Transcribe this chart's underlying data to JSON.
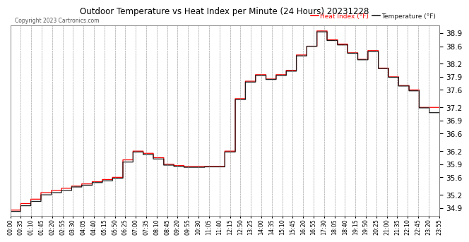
{
  "title": "Outdoor Temperature vs Heat Index per Minute (24 Hours) 20231228",
  "copyright": "Copyright 2023 Cartronics.com",
  "legend_heat": "Heat Index (°F)",
  "legend_temp": "Temperature (°F)",
  "ylabel_right_ticks": [
    34.9,
    35.2,
    35.6,
    35.9,
    36.2,
    36.6,
    36.9,
    37.2,
    37.6,
    37.9,
    38.2,
    38.6,
    38.9
  ],
  "ylim": [
    34.72,
    39.08
  ],
  "bg_color": "#ffffff",
  "grid_color": "#aaaaaa",
  "heat_color": "#ff0000",
  "temp_color": "#1a1a1a",
  "x_tick_labels": [
    "00:00",
    "00:35",
    "01:10",
    "01:45",
    "02:20",
    "02:55",
    "03:30",
    "04:05",
    "04:40",
    "05:15",
    "05:50",
    "06:25",
    "07:00",
    "07:35",
    "08:10",
    "08:45",
    "09:20",
    "09:55",
    "10:30",
    "11:05",
    "11:40",
    "12:15",
    "12:50",
    "13:25",
    "14:00",
    "14:35",
    "15:10",
    "15:45",
    "16:20",
    "16:55",
    "17:30",
    "18:05",
    "18:40",
    "19:15",
    "19:50",
    "20:25",
    "21:00",
    "21:35",
    "22:10",
    "22:45",
    "23:20",
    "23:55"
  ],
  "heat_index_data": [
    34.85,
    35.0,
    35.1,
    35.25,
    35.3,
    35.35,
    35.4,
    35.45,
    35.5,
    35.55,
    35.6,
    36.0,
    36.2,
    36.15,
    36.05,
    35.9,
    35.87,
    35.85,
    35.85,
    35.85,
    35.85,
    36.2,
    37.4,
    37.8,
    37.95,
    37.85,
    37.95,
    38.05,
    38.4,
    38.6,
    38.95,
    38.75,
    38.65,
    38.45,
    38.3,
    38.5,
    38.1,
    37.9,
    37.7,
    37.6,
    37.2,
    37.2
  ],
  "temp_data": [
    34.82,
    34.95,
    35.05,
    35.2,
    35.25,
    35.3,
    35.38,
    35.42,
    35.48,
    35.52,
    35.58,
    35.95,
    36.18,
    36.12,
    36.02,
    35.88,
    35.85,
    35.83,
    35.83,
    35.84,
    35.84,
    36.18,
    37.38,
    37.78,
    37.93,
    37.84,
    37.93,
    38.03,
    38.38,
    38.6,
    38.93,
    38.73,
    38.63,
    38.44,
    38.29,
    38.48,
    38.09,
    37.89,
    37.69,
    37.58,
    37.19,
    37.08
  ]
}
